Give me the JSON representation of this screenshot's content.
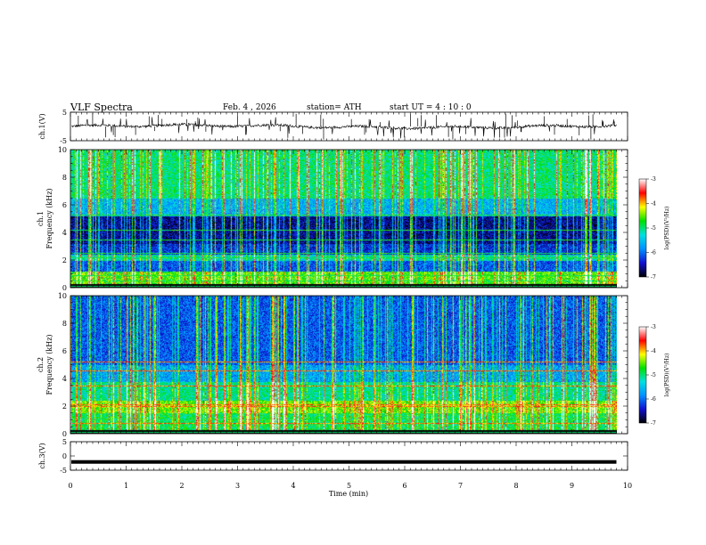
{
  "header": {
    "title": "VLF  Spectra",
    "date": "Feb. 4  , 2026",
    "station": "station= ATH",
    "start": "start  UT  =   4  : 10 : 0"
  },
  "chart_data": [
    {
      "type": "line",
      "name": "ch1-waveform",
      "ylabel": "ch.1(V)",
      "ylim": [
        -5,
        5
      ],
      "yticks": [
        "5",
        "-5"
      ],
      "xlim": [
        0,
        10
      ],
      "baseline": 0,
      "duration_min": 9.8
    },
    {
      "type": "heatmap",
      "name": "ch1-spectrogram",
      "ylabel_top": "ch.1",
      "ylabel": "Frequency  (kHz)",
      "ylim": [
        0,
        10
      ],
      "yticks": [
        "0",
        "2",
        "4",
        "6",
        "8",
        "10"
      ],
      "xlim": [
        0,
        9.8
      ],
      "colorbar": {
        "label": "log(PSD)(V²/Hz)",
        "range": [
          -7,
          -3
        ],
        "ticks": [
          "-3",
          "-4",
          "-5",
          "-6",
          "-7"
        ],
        "colors": [
          "#000000",
          "#1010d0",
          "#0090ff",
          "#00e0e0",
          "#00e000",
          "#ffff00",
          "#ff0000",
          "#ffffff"
        ]
      },
      "bands": [
        {
          "f": [
            0,
            0.3
          ],
          "level": -7
        },
        {
          "f": [
            0.3,
            1.2
          ],
          "level": -4.6
        },
        {
          "f": [
            1.2,
            2.0
          ],
          "level": -6.1
        },
        {
          "f": [
            2.0,
            2.4
          ],
          "level": -5.2
        },
        {
          "f": [
            2.4,
            3.2
          ],
          "level": -6.3
        },
        {
          "f": [
            3.2,
            5.2
          ],
          "level": -6.6
        },
        {
          "f": [
            5.2,
            6.5
          ],
          "level": -5.6
        },
        {
          "f": [
            6.5,
            10
          ],
          "level": -5.0
        }
      ],
      "lines_khz": [
        0.5,
        0.9,
        2.2,
        2.5,
        3.5,
        4.2,
        5.3
      ],
      "line_level": -4.8
    },
    {
      "type": "heatmap",
      "name": "ch2-spectrogram",
      "ylabel_top": "ch.2",
      "ylabel": "Frequency  (kHz)",
      "ylim": [
        0,
        10
      ],
      "yticks": [
        "0",
        "2",
        "4",
        "6",
        "8",
        "10"
      ],
      "xlim": [
        0,
        9.8
      ],
      "colorbar": {
        "label": "log(PSD)(V²/Hz)",
        "range": [
          -7,
          -3
        ],
        "ticks": [
          "-3",
          "-4",
          "-5",
          "-6",
          "-7"
        ],
        "colors": [
          "#000000",
          "#1010d0",
          "#0090ff",
          "#00e0e0",
          "#00e000",
          "#ffff00",
          "#ff0000",
          "#ffffff"
        ]
      },
      "bands": [
        {
          "f": [
            0,
            0.3
          ],
          "level": -7
        },
        {
          "f": [
            0.3,
            1.5
          ],
          "level": -4.9
        },
        {
          "f": [
            1.5,
            2.4
          ],
          "level": -4.5
        },
        {
          "f": [
            2.4,
            3.8
          ],
          "level": -5.1
        },
        {
          "f": [
            3.8,
            5.0
          ],
          "level": -5.7
        },
        {
          "f": [
            5.0,
            10
          ],
          "level": -6.1
        }
      ],
      "lines_khz": [
        0.8,
        2.0,
        2.1,
        3.5,
        4.6,
        5.2
      ],
      "line_level": -3.8
    },
    {
      "type": "line",
      "name": "ch3-waveform",
      "ylabel": "ch.3(V)",
      "ylim": [
        -5,
        5
      ],
      "yticks": [
        "5",
        "0",
        "-5"
      ],
      "xlim": [
        0,
        10
      ],
      "baseline": -2.1,
      "duration_min": 9.8
    }
  ],
  "xaxis": {
    "label": "Time  (min)",
    "ticks": [
      "0",
      "1",
      "2",
      "3",
      "4",
      "5",
      "6",
      "7",
      "8",
      "9",
      "10"
    ],
    "range": [
      0,
      10
    ]
  }
}
